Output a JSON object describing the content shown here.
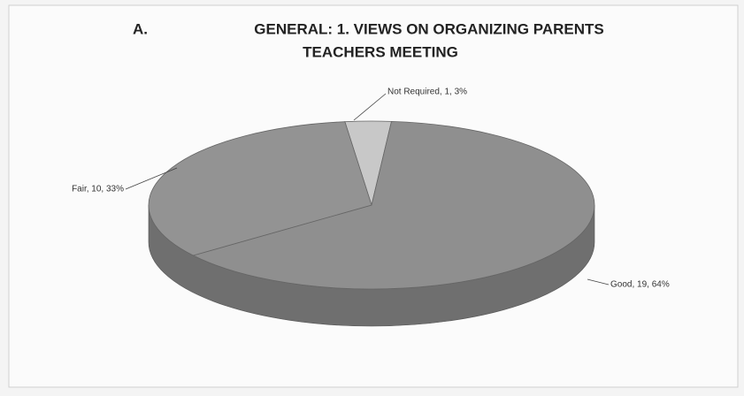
{
  "chart_data": {
    "type": "pie3d",
    "section": "A.",
    "title_lines": [
      "GENERAL: 1. VIEWS ON ORGANIZING PARENTS",
      "TEACHERS MEETING"
    ],
    "categories": [
      "Not Required",
      "Good",
      "Fair"
    ],
    "values": [
      1,
      19,
      10
    ],
    "value_labels": [
      "Not Required, 1, 3%",
      "Good, 19, 64%",
      "Fair, 10, 33%"
    ],
    "colors": [
      "#c8c8c8",
      "#8f8f8f",
      "#939393"
    ]
  }
}
